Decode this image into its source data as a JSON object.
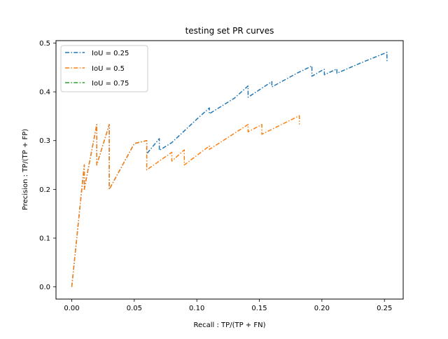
{
  "chart_data": {
    "type": "line",
    "title": "testing set PR curves",
    "xlabel": "Recall : TP/(TP + FN)",
    "ylabel": "Precision : TP/(TP + FP)",
    "xlim": [
      -0.0126,
      0.265
    ],
    "ylim": [
      -0.025,
      0.505
    ],
    "xticks": [
      0.0,
      0.05,
      0.1,
      0.15,
      0.2,
      0.25
    ],
    "xtick_labels": [
      "0.00",
      "0.05",
      "0.10",
      "0.15",
      "0.20",
      "0.25"
    ],
    "yticks": [
      0.0,
      0.1,
      0.2,
      0.3,
      0.4,
      0.5
    ],
    "ytick_labels": [
      "0.0",
      "0.1",
      "0.2",
      "0.3",
      "0.4",
      "0.5"
    ],
    "grid": false,
    "legend_position": "upper-left",
    "series": [
      {
        "name": "IoU = 0.25",
        "color": "#1f77b4",
        "x": [
          0.0,
          0.0,
          0.01,
          0.01,
          0.02,
          0.02,
          0.03,
          0.03,
          0.05,
          0.06,
          0.06,
          0.07,
          0.07,
          0.08,
          0.1,
          0.11,
          0.11,
          0.13,
          0.141,
          0.141,
          0.15,
          0.16,
          0.16,
          0.18,
          0.192,
          0.192,
          0.2,
          0.202,
          0.202,
          0.212,
          0.212,
          0.23,
          0.252,
          0.252
        ],
        "y": [
          0.0,
          0.0,
          0.25,
          0.2,
          0.333,
          0.25,
          0.333,
          0.2,
          0.294,
          0.3,
          0.273,
          0.304,
          0.28,
          0.296,
          0.344,
          0.367,
          0.355,
          0.387,
          0.412,
          0.389,
          0.404,
          0.421,
          0.41,
          0.438,
          0.453,
          0.432,
          0.444,
          0.446,
          0.435,
          0.447,
          0.438,
          0.458,
          0.481,
          0.463
        ]
      },
      {
        "name": "IoU = 0.5",
        "color": "#ff7f0e",
        "x": [
          0.0,
          0.0,
          0.01,
          0.01,
          0.02,
          0.02,
          0.03,
          0.03,
          0.05,
          0.06,
          0.06,
          0.08,
          0.08,
          0.09,
          0.09,
          0.11,
          0.11,
          0.141,
          0.141,
          0.152,
          0.152,
          0.182,
          0.182
        ],
        "y": [
          0.0,
          0.0,
          0.25,
          0.2,
          0.333,
          0.25,
          0.333,
          0.2,
          0.294,
          0.3,
          0.24,
          0.276,
          0.258,
          0.281,
          0.25,
          0.289,
          0.282,
          0.333,
          0.318,
          0.333,
          0.313,
          0.351,
          0.333
        ]
      },
      {
        "name": "IoU = 0.75",
        "color": "#2ca02c",
        "x": [],
        "y": []
      }
    ]
  }
}
